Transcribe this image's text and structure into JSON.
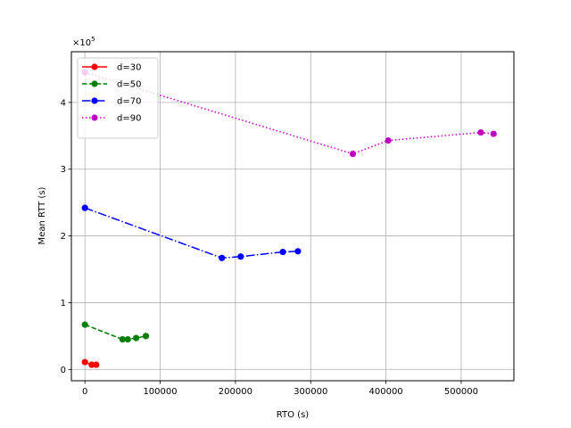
{
  "chart_data": {
    "type": "line",
    "xlabel": "RTO (s)",
    "ylabel": "Mean RTT (s)",
    "y_offset_label": "×10",
    "y_offset_exp": "5",
    "xlim": [
      -18000,
      570000
    ],
    "ylim": [
      -0.17,
      4.76
    ],
    "xticks": [
      0,
      100000,
      200000,
      300000,
      400000,
      500000
    ],
    "xtick_labels": [
      "0",
      "100000",
      "200000",
      "300000",
      "400000",
      "500000"
    ],
    "yticks": [
      0,
      1,
      2,
      3,
      4
    ],
    "ytick_labels": [
      "0",
      "1",
      "2",
      "3",
      "4"
    ],
    "grid": true,
    "legend_position": "top-left",
    "series": [
      {
        "name": "d=30",
        "color": "#ff0000",
        "linestyle": "solid",
        "x": [
          0,
          9000,
          15000
        ],
        "y": [
          0.11,
          0.07,
          0.07
        ]
      },
      {
        "name": "d=50",
        "color": "#008000",
        "linestyle": "dashed",
        "x": [
          0,
          50000,
          57000,
          68000,
          81000
        ],
        "y": [
          0.67,
          0.45,
          0.45,
          0.47,
          0.5
        ]
      },
      {
        "name": "d=70",
        "color": "#0000ff",
        "linestyle": "dashdot",
        "x": [
          0,
          182000,
          207000,
          263000,
          283000
        ],
        "y": [
          2.42,
          1.67,
          1.69,
          1.76,
          1.77
        ]
      },
      {
        "name": "d=90",
        "color": "#bf00bf",
        "linestyle": "dotted",
        "x": [
          0,
          356000,
          403000,
          526000,
          543000
        ],
        "y": [
          4.45,
          3.23,
          3.43,
          3.55,
          3.53
        ]
      }
    ]
  }
}
